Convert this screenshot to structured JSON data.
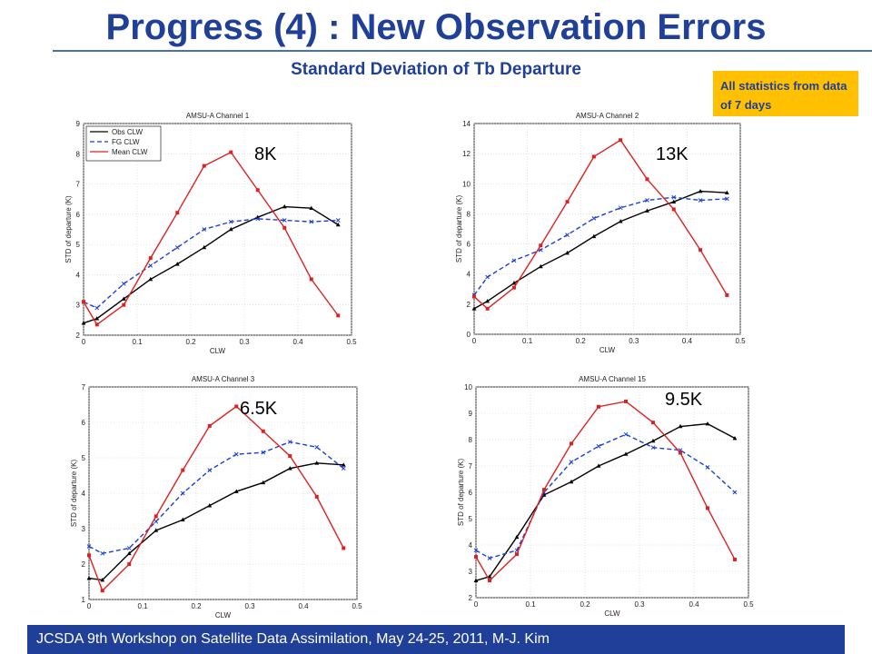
{
  "title": "Progress (4) : New Observation Errors",
  "subtitle": "Standard Deviation of Tb Departure",
  "note": "All statistics from data of 7 days",
  "footer": "JCSDA 9th Workshop on Satellite Data Assimilation, May 24-25, 2011,     M-J.  Kim",
  "colors": {
    "obs": "#000000",
    "fg": "#1a3fd6",
    "mean": "#e02020",
    "title": "#1f3f99",
    "note_bg": "#ffc000"
  },
  "chart_data": [
    {
      "type": "line",
      "title": "AMSU-A Channel 1",
      "xlabel": "CLW",
      "ylabel": "STD of departure (K)",
      "annotation": "8K",
      "xlim": [
        0,
        0.5
      ],
      "ylim": [
        2,
        9
      ],
      "xticks": [
        0,
        0.1,
        0.2,
        0.3,
        0.4,
        0.5
      ],
      "yticks": [
        2,
        3,
        4,
        5,
        6,
        7,
        8,
        9
      ],
      "legend": "top-left",
      "x": [
        0,
        0.025,
        0.075,
        0.125,
        0.175,
        0.225,
        0.275,
        0.325,
        0.375,
        0.425,
        0.475
      ],
      "series": [
        {
          "name": "Obs CLW",
          "values": [
            2.4,
            2.55,
            3.2,
            3.85,
            4.35,
            4.9,
            5.5,
            5.9,
            6.25,
            6.2,
            5.65
          ]
        },
        {
          "name": "FG CLW",
          "values": [
            3.1,
            2.9,
            3.7,
            4.3,
            4.9,
            5.5,
            5.75,
            5.85,
            5.8,
            5.75,
            5.8
          ]
        },
        {
          "name": "Mean CLW",
          "values": [
            3.1,
            2.35,
            3.0,
            4.55,
            6.05,
            7.6,
            8.05,
            6.8,
            5.55,
            3.85,
            2.65
          ]
        }
      ]
    },
    {
      "type": "line",
      "title": "AMSU-A Channel 2",
      "xlabel": "CLW",
      "ylabel": "STD of departure (K)",
      "annotation": "13K",
      "xlim": [
        0,
        0.5
      ],
      "ylim": [
        0,
        14
      ],
      "xticks": [
        0,
        0.1,
        0.2,
        0.3,
        0.4,
        0.5
      ],
      "yticks": [
        0,
        2,
        4,
        6,
        8,
        10,
        12,
        14
      ],
      "x": [
        0,
        0.025,
        0.075,
        0.125,
        0.175,
        0.225,
        0.275,
        0.325,
        0.375,
        0.425,
        0.475
      ],
      "series": [
        {
          "name": "Obs CLW",
          "values": [
            1.7,
            2.2,
            3.4,
            4.5,
            5.4,
            6.5,
            7.5,
            8.2,
            8.8,
            9.5,
            9.4
          ]
        },
        {
          "name": "FG CLW",
          "values": [
            2.6,
            3.8,
            4.9,
            5.6,
            6.6,
            7.7,
            8.4,
            8.9,
            9.1,
            8.9,
            9.0
          ]
        },
        {
          "name": "Mean CLW",
          "values": [
            2.5,
            1.7,
            3.1,
            5.9,
            8.8,
            11.8,
            12.9,
            10.3,
            8.3,
            5.6,
            2.6
          ]
        }
      ]
    },
    {
      "type": "line",
      "title": "AMSU-A Channel 3",
      "xlabel": "CLW",
      "ylabel": "STD of departure (K)",
      "annotation": "6.5K",
      "xlim": [
        0,
        0.5
      ],
      "ylim": [
        1,
        7
      ],
      "xticks": [
        0,
        0.1,
        0.2,
        0.3,
        0.4,
        0.5
      ],
      "yticks": [
        1,
        2,
        3,
        4,
        5,
        6,
        7
      ],
      "x": [
        0,
        0.025,
        0.075,
        0.125,
        0.175,
        0.225,
        0.275,
        0.325,
        0.375,
        0.425,
        0.475
      ],
      "series": [
        {
          "name": "Obs CLW",
          "values": [
            1.6,
            1.55,
            2.3,
            2.95,
            3.25,
            3.65,
            4.05,
            4.3,
            4.7,
            4.85,
            4.8
          ]
        },
        {
          "name": "FG CLW",
          "values": [
            2.5,
            2.3,
            2.45,
            3.2,
            4.0,
            4.65,
            5.1,
            5.15,
            5.45,
            5.3,
            4.7
          ]
        },
        {
          "name": "Mean CLW",
          "values": [
            2.25,
            1.25,
            2.0,
            3.35,
            4.65,
            5.9,
            6.45,
            5.75,
            5.05,
            3.9,
            2.45
          ]
        }
      ]
    },
    {
      "type": "line",
      "title": "AMSU-A Channel 15",
      "xlabel": "CLW",
      "ylabel": "STD of departure (K)",
      "annotation": "9.5K",
      "xlim": [
        0,
        0.5
      ],
      "ylim": [
        2,
        10
      ],
      "xticks": [
        0,
        0.1,
        0.2,
        0.3,
        0.4,
        0.5
      ],
      "yticks": [
        2,
        3,
        4,
        5,
        6,
        7,
        8,
        9,
        10
      ],
      "x": [
        0,
        0.025,
        0.075,
        0.125,
        0.175,
        0.225,
        0.275,
        0.325,
        0.375,
        0.425,
        0.475
      ],
      "series": [
        {
          "name": "Obs CLW",
          "values": [
            2.65,
            2.8,
            4.3,
            5.9,
            6.4,
            7.0,
            7.45,
            7.95,
            8.5,
            8.6,
            8.05
          ]
        },
        {
          "name": "FG CLW",
          "values": [
            3.8,
            3.5,
            3.8,
            6.0,
            7.15,
            7.75,
            8.2,
            7.7,
            7.6,
            6.95,
            6.0
          ]
        },
        {
          "name": "Mean CLW",
          "values": [
            3.55,
            2.65,
            3.65,
            6.1,
            7.85,
            9.25,
            9.45,
            8.65,
            7.5,
            5.4,
            3.45
          ]
        }
      ]
    }
  ]
}
